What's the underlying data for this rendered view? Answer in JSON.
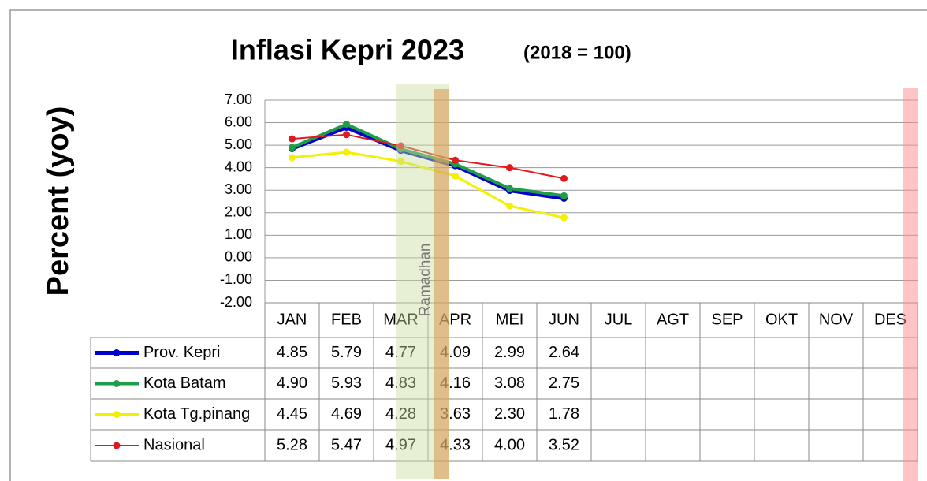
{
  "chart_data": {
    "type": "line",
    "title": "Inflasi Kepri 2023",
    "subtitle": "(2018 = 100)",
    "y_label": "Percent (yoy)",
    "annotation": "Ramadhan",
    "categories": [
      "JAN",
      "FEB",
      "MAR",
      "APR",
      "MEI",
      "JUN",
      "JUL",
      "AGT",
      "SEP",
      "OKT",
      "NOV",
      "DES"
    ],
    "series": [
      {
        "name": "Prov. Kepri",
        "color": "#0000cc",
        "values": [
          4.85,
          5.79,
          4.77,
          4.09,
          2.99,
          2.64,
          null,
          null,
          null,
          null,
          null,
          null
        ],
        "value_labels": [
          "4.85",
          "5.79",
          "4.77",
          "4.09",
          "2.99",
          "2.64",
          null,
          null,
          null,
          null,
          null,
          null
        ]
      },
      {
        "name": "Kota Batam",
        "color": "#1f9e4a",
        "values": [
          4.9,
          5.93,
          4.83,
          4.16,
          3.08,
          2.75,
          null,
          null,
          null,
          null,
          null,
          null
        ],
        "value_labels": [
          "4.90",
          "5.93",
          "4.83",
          "4.16",
          "3.08",
          "2.75",
          null,
          null,
          null,
          null,
          null,
          null
        ]
      },
      {
        "name": "Kota Tg.pinang",
        "color": "#f2f200",
        "values": [
          4.45,
          4.69,
          4.28,
          3.63,
          2.3,
          1.78,
          null,
          null,
          null,
          null,
          null,
          null
        ],
        "value_labels": [
          "4.45",
          "4.69",
          "4.28",
          "3.63",
          "2.30",
          "1.78",
          null,
          null,
          null,
          null,
          null,
          null
        ]
      },
      {
        "name": "Nasional",
        "color": "#e0191e",
        "values": [
          5.28,
          5.47,
          4.97,
          4.33,
          4.0,
          3.52,
          null,
          null,
          null,
          null,
          null,
          null
        ],
        "value_labels": [
          "5.28",
          "5.47",
          "4.97",
          "4.33",
          "4.00",
          "3.52",
          null,
          null,
          null,
          null,
          null,
          null
        ]
      }
    ],
    "ylim": [
      -2,
      7
    ],
    "yticks": [
      {
        "value": -2,
        "label": "-2.00"
      },
      {
        "value": -1,
        "label": "-1.00"
      },
      {
        "value": 0,
        "label": "0.00"
      },
      {
        "value": 1,
        "label": "1.00"
      },
      {
        "value": 2,
        "label": "2.00"
      },
      {
        "value": 3,
        "label": "3.00"
      },
      {
        "value": 4,
        "label": "4.00"
      },
      {
        "value": 5,
        "label": "5.00"
      },
      {
        "value": 6,
        "label": "6.00"
      },
      {
        "value": 7,
        "label": "7.00"
      }
    ],
    "grid": true
  }
}
